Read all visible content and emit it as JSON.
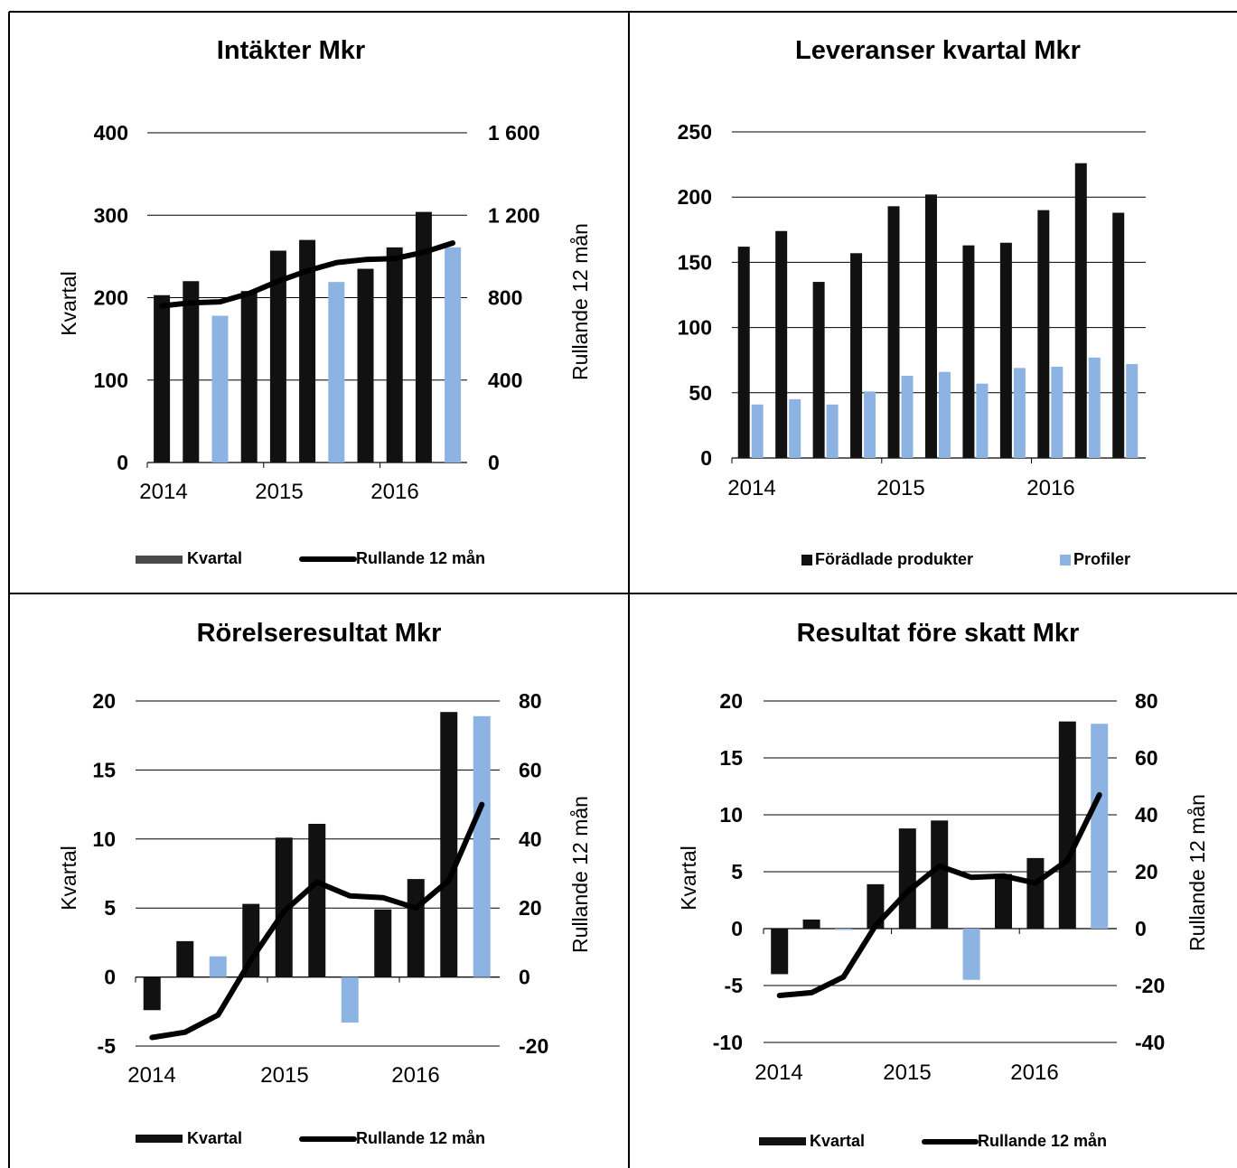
{
  "colors": {
    "black_bar": "#111111",
    "blue_bar": "#8DB3E2",
    "line": "#000000",
    "gray_legend": "#4a4a4a"
  },
  "chart_data": [
    {
      "type": "bar",
      "title": "Intäkter Mkr",
      "ylabel": "Kvartal",
      "y2label": "Rullande 12 mån",
      "ylim": [
        0,
        400
      ],
      "y2lim": [
        0,
        1600
      ],
      "yticks": [
        "0",
        "100",
        "200",
        "300",
        "400"
      ],
      "y2ticks": [
        "0",
        "400",
        "800",
        "1 200",
        "1 600"
      ],
      "xticks": [
        "2014",
        "2015",
        "2016"
      ],
      "bar_colors": [
        "black",
        "black",
        "blue",
        "black",
        "black",
        "black",
        "blue",
        "black",
        "black",
        "black",
        "blue"
      ],
      "series": [
        {
          "name": "Kvartal",
          "kind": "bar",
          "values": [
            203,
            220,
            178,
            208,
            257,
            270,
            219,
            235,
            261,
            304,
            261
          ]
        },
        {
          "name": "Rullande 12 mån",
          "kind": "line",
          "axis": "right",
          "values": [
            760,
            775,
            780,
            820,
            880,
            930,
            970,
            985,
            990,
            1020,
            1065
          ]
        }
      ],
      "legend": [
        {
          "label": "Kvartal",
          "swatch": "gray-bar"
        },
        {
          "label": "Rullande 12 mån",
          "swatch": "line"
        }
      ]
    },
    {
      "type": "bar",
      "title": "Leveranser kvartal Mkr",
      "ylim": [
        0,
        250
      ],
      "yticks": [
        "0",
        "50",
        "100",
        "150",
        "200",
        "250"
      ],
      "xticks": [
        "2014",
        "2015",
        "2016"
      ],
      "series": [
        {
          "name": "Förädlade produkter",
          "kind": "bar",
          "color": "black",
          "values": [
            162,
            174,
            135,
            157,
            193,
            202,
            163,
            165,
            190,
            226,
            188
          ]
        },
        {
          "name": "Profiler",
          "kind": "bar",
          "color": "blue",
          "values": [
            41,
            45,
            41,
            51,
            63,
            66,
            57,
            69,
            70,
            77,
            72
          ]
        }
      ],
      "legend": [
        {
          "label": "Förädlade produkter",
          "swatch": "black-square"
        },
        {
          "label": "Profiler",
          "swatch": "blue-square"
        }
      ]
    },
    {
      "type": "bar",
      "title": "Rörelseresultat Mkr",
      "ylabel": "Kvartal",
      "y2label": "Rullande 12 mån",
      "ylim": [
        -5,
        20
      ],
      "y2lim": [
        -20,
        80
      ],
      "yticks": [
        "-5",
        "0",
        "5",
        "10",
        "15",
        "20"
      ],
      "y2ticks": [
        "-20",
        "0",
        "20",
        "40",
        "60",
        "80"
      ],
      "xticks": [
        "2014",
        "2015",
        "2016"
      ],
      "bar_colors": [
        "black",
        "black",
        "blue",
        "black",
        "black",
        "black",
        "blue",
        "black",
        "black",
        "black",
        "blue"
      ],
      "series": [
        {
          "name": "Kvartal",
          "kind": "bar",
          "values": [
            -2.4,
            2.6,
            1.5,
            5.3,
            10.1,
            11.1,
            -3.3,
            4.9,
            7.1,
            19.2,
            18.9
          ]
        },
        {
          "name": "Rullande 12 mån",
          "kind": "line",
          "axis": "right",
          "values": [
            -17.5,
            -16,
            -11,
            5,
            19,
            27.5,
            23.5,
            23,
            20,
            28,
            50
          ]
        }
      ],
      "legend": [
        {
          "label": "Kvartal",
          "swatch": "black-bar"
        },
        {
          "label": "Rullande 12 mån",
          "swatch": "line"
        }
      ]
    },
    {
      "type": "bar",
      "title": "Resultat före skatt Mkr",
      "ylabel": "Kvartal",
      "y2label": "Rullande 12 mån",
      "ylim": [
        -10,
        20
      ],
      "y2lim": [
        -40,
        80
      ],
      "yticks": [
        "-10",
        "-5",
        "0",
        "5",
        "10",
        "15",
        "20"
      ],
      "y2ticks": [
        "-40",
        "-20",
        "0",
        "20",
        "40",
        "60",
        "80"
      ],
      "xticks": [
        "2014",
        "2015",
        "2016"
      ],
      "bar_colors": [
        "black",
        "black",
        "blue",
        "black",
        "black",
        "black",
        "blue",
        "black",
        "black",
        "black",
        "blue"
      ],
      "series": [
        {
          "name": "Kvartal",
          "kind": "bar",
          "values": [
            -4.0,
            0.8,
            -0.1,
            3.9,
            8.8,
            9.5,
            -4.5,
            4.8,
            6.2,
            18.2,
            18.0
          ]
        },
        {
          "name": "Rullande 12 mån",
          "kind": "line",
          "axis": "right",
          "values": [
            -23.5,
            -22.5,
            -17,
            1,
            13,
            22,
            18,
            18.5,
            16,
            24,
            47
          ]
        }
      ],
      "legend": [
        {
          "label": "Kvartal",
          "swatch": "black-bar"
        },
        {
          "label": "Rullande 12 mån",
          "swatch": "line"
        }
      ]
    }
  ]
}
